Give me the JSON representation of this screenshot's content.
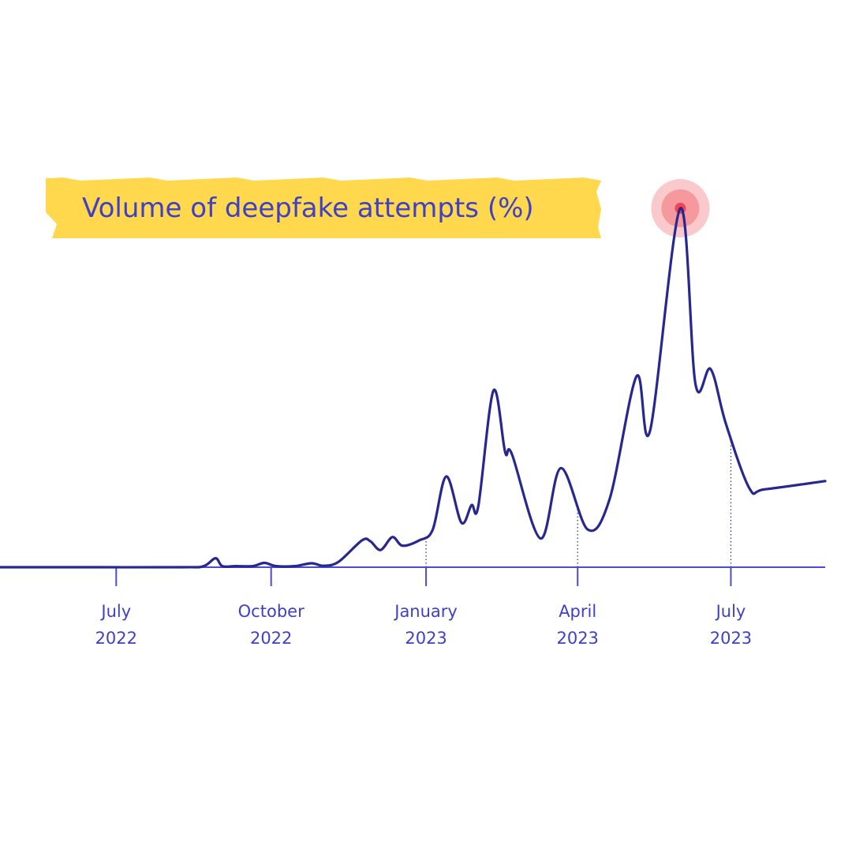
{
  "colors": {
    "line": "#26278f",
    "axis": "#4b4cd1",
    "label": "#3f40c4",
    "highlight": "#ffd84d",
    "peak_outer": "#f9c9cc",
    "peak_mid": "#f6999e",
    "peak_core": "#ef4451"
  },
  "chart_data": {
    "type": "line",
    "title": "Volume of deepfake attempts (%)",
    "xlabel": "",
    "ylabel": "",
    "ylim": [
      0,
      100
    ],
    "x_range": [
      "2022-04-23",
      "2023-08-26"
    ],
    "grid": false,
    "legend": "none",
    "ticks": [
      {
        "date": "2022-07-01",
        "month": "July",
        "year": "2022",
        "guide": false
      },
      {
        "date": "2022-10-01",
        "month": "October",
        "year": "2022",
        "guide": false
      },
      {
        "date": "2023-01-01",
        "month": "January",
        "year": "2023",
        "guide": true
      },
      {
        "date": "2023-04-01",
        "month": "April",
        "year": "2023",
        "guide": true
      },
      {
        "date": "2023-07-01",
        "month": "July",
        "year": "2023",
        "guide": true
      }
    ],
    "peak": {
      "date": "2023-06-01",
      "value": 100
    },
    "series": [
      {
        "points": [
          [
            "2022-04-23",
            0
          ],
          [
            "2022-06-15",
            0
          ],
          [
            "2022-08-10",
            0
          ],
          [
            "2022-08-22",
            0.3
          ],
          [
            "2022-08-29",
            2.5
          ],
          [
            "2022-09-02",
            0.3
          ],
          [
            "2022-09-10",
            0.3
          ],
          [
            "2022-09-20",
            0.3
          ],
          [
            "2022-09-27",
            1.2
          ],
          [
            "2022-10-04",
            0.3
          ],
          [
            "2022-10-15",
            0.3
          ],
          [
            "2022-10-25",
            1.1
          ],
          [
            "2022-11-01",
            0.4
          ],
          [
            "2022-11-10",
            1.5
          ],
          [
            "2022-11-24",
            7.5
          ],
          [
            "2022-11-29",
            7.2
          ],
          [
            "2022-12-05",
            4.8
          ],
          [
            "2022-12-12",
            8.4
          ],
          [
            "2022-12-18",
            6.0
          ],
          [
            "2022-12-28",
            7.5
          ],
          [
            "2023-01-05",
            10.5
          ],
          [
            "2023-01-13",
            25.3
          ],
          [
            "2023-01-22",
            12.4
          ],
          [
            "2023-01-28",
            17.3
          ],
          [
            "2023-02-01",
            17.0
          ],
          [
            "2023-02-10",
            49.2
          ],
          [
            "2023-02-17",
            32.0
          ],
          [
            "2023-02-21",
            31.5
          ],
          [
            "2023-03-10",
            8.0
          ],
          [
            "2023-03-22",
            27.6
          ],
          [
            "2023-04-07",
            10.5
          ],
          [
            "2023-04-20",
            19.0
          ],
          [
            "2023-05-06",
            53.2
          ],
          [
            "2023-05-14",
            38.0
          ],
          [
            "2023-06-01",
            100
          ],
          [
            "2023-06-10",
            51.0
          ],
          [
            "2023-06-19",
            55.2
          ],
          [
            "2023-06-28",
            40.0
          ],
          [
            "2023-07-12",
            22.0
          ],
          [
            "2023-07-21",
            21.7
          ],
          [
            "2023-08-26",
            24.0
          ]
        ]
      }
    ]
  }
}
